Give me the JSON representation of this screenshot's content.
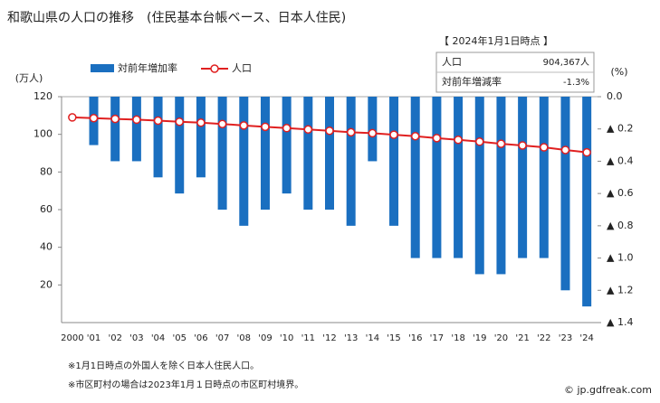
{
  "chart_data": {
    "type": "bar-line",
    "title": "和歌山県の人口の推移　(住民基本台帳ベース、日本人住民)",
    "categories": [
      "2000",
      "'01",
      "'02",
      "'03",
      "'04",
      "'05",
      "'06",
      "'07",
      "'08",
      "'09",
      "'10",
      "'11",
      "'12",
      "'13",
      "'14",
      "'15",
      "'16",
      "'17",
      "'18",
      "'19",
      "'20",
      "'21",
      "'22",
      "'23",
      "'24"
    ],
    "series": [
      {
        "name": "対前年増加率",
        "type": "bar",
        "axis": "y2",
        "color": "#1a6fc0",
        "values": [
          null,
          -0.3,
          -0.4,
          -0.4,
          -0.5,
          -0.6,
          -0.5,
          -0.7,
          -0.8,
          -0.7,
          -0.6,
          -0.7,
          -0.7,
          -0.8,
          -0.4,
          -0.8,
          -1.0,
          -1.0,
          -1.0,
          -1.1,
          -1.1,
          -1.0,
          -1.0,
          -1.2,
          -1.3
        ]
      },
      {
        "name": "人口",
        "type": "line",
        "color": "#e02020",
        "values": [
          109.0,
          108.6,
          108.2,
          107.8,
          107.3,
          106.7,
          106.2,
          105.5,
          104.7,
          104.0,
          103.3,
          102.6,
          101.9,
          101.1,
          100.6,
          99.8,
          99.0,
          98.0,
          97.1,
          96.1,
          95.0,
          94.1,
          93.1,
          91.7,
          90.4
        ]
      }
    ],
    "ylabel": "(万人)",
    "y2label": "(%)",
    "ylim": [
      0,
      120
    ],
    "yticks": [
      20,
      40,
      60,
      80,
      100,
      120
    ],
    "y2lim": [
      -1.4,
      0
    ],
    "y2ticks": [
      {
        "value": 0,
        "label": "0.0"
      },
      {
        "value": -0.2,
        "label": "▲ 0.2"
      },
      {
        "value": -0.4,
        "label": "▲ 0.4"
      },
      {
        "value": -0.6,
        "label": "▲ 0.6"
      },
      {
        "value": -0.8,
        "label": "▲ 0.8"
      },
      {
        "value": -1.0,
        "label": "▲ 1.0"
      },
      {
        "value": -1.2,
        "label": "▲ 1.2"
      },
      {
        "value": -1.4,
        "label": "▲ 1.4"
      }
    ],
    "info_box": {
      "date": "【 2024年1月1日時点 】",
      "rows": [
        [
          "人口",
          "904,367人"
        ],
        [
          "対前年増減率",
          "-1.3%"
        ]
      ]
    },
    "notes": [
      "※1月1日時点の外国人を除く日本人住民人口。",
      "※市区町村の場合は2023年1月１日時点の市区町村境界。"
    ],
    "credit": "© jp.gdfreak.com"
  }
}
